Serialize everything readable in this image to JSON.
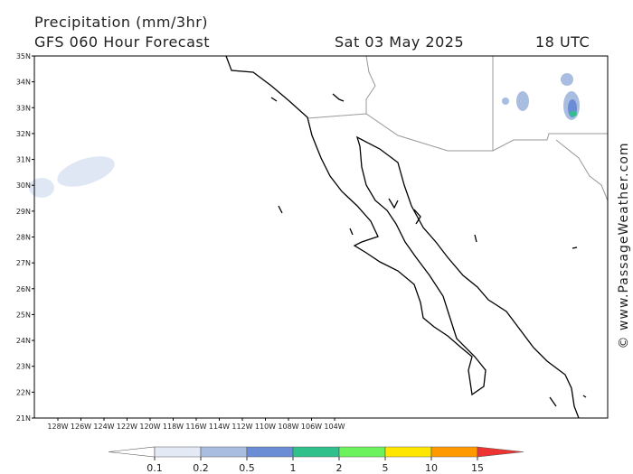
{
  "header": {
    "title": "Precipitation (mm/3hr)",
    "subtitle": "GFS 060 Hour Forecast",
    "date": "Sat 03 May 2025",
    "time": "18 UTC"
  },
  "map": {
    "lat_labels": [
      "35N",
      "34N",
      "33N",
      "32N",
      "31N",
      "30N",
      "29N",
      "28N",
      "27N",
      "26N",
      "25N",
      "24N",
      "23N",
      "22N",
      "21N"
    ],
    "lon_labels": [
      "128W",
      "126W",
      "124W",
      "122W",
      "120W",
      "118W",
      "116W",
      "114W",
      "112W",
      "110W",
      "108W",
      "106W",
      "104W"
    ]
  },
  "legend": {
    "levels": [
      "0.1",
      "0.2",
      "0.5",
      "1",
      "2",
      "5",
      "10",
      "15"
    ],
    "colors": [
      "#ffffff",
      "#e3eaf6",
      "#a8bde0",
      "#6a8dd5",
      "#2fc08c",
      "#6cf25c",
      "#ffe600",
      "#ff9900",
      "#ee3333"
    ]
  },
  "watermark": "© www.PassageWeather.com"
}
